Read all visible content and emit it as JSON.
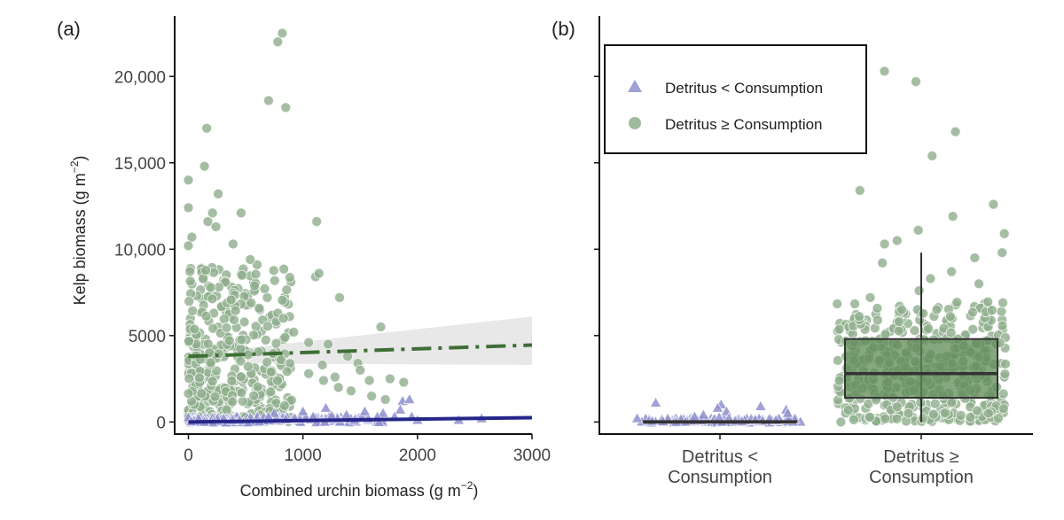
{
  "colors": {
    "green": "#8fae8c",
    "green_line": "#3e6e35",
    "blue": "#8e8fcc",
    "blue_line": "#25268a",
    "box_fill": "#5f8a57",
    "ci_band": "#e6e6e6"
  },
  "chart_data": [
    {
      "type": "scatter",
      "panel_label": "(a)",
      "xlabel": "Combined urchin biomass (g m",
      "xlabel_sup": "−2",
      "xlabel_close": ")",
      "ylabel": "Kelp biomass (g m",
      "ylabel_sup": "−2",
      "ylabel_close": ")",
      "xlim": [
        -120,
        3000
      ],
      "ylim": [
        -700,
        23500
      ],
      "xticks": [
        0,
        1000,
        2000,
        3000
      ],
      "xtick_labels": [
        "0",
        "1000",
        "2000",
        "3000"
      ],
      "yticks": [
        0,
        5000,
        10000,
        15000,
        20000
      ],
      "ytick_labels": [
        "0",
        "5000",
        "10,000",
        "15,000",
        "20,000"
      ],
      "series": [
        {
          "name": "Detritus ≥ Consumption",
          "marker": "circle",
          "highlight_points": [
            [
              820,
              22500
            ],
            [
              780,
              22000
            ],
            [
              700,
              18600
            ],
            [
              850,
              18200
            ],
            [
              160,
              17000
            ],
            [
              140,
              14800
            ],
            [
              0,
              14000
            ],
            [
              260,
              13200
            ],
            [
              0,
              12400
            ],
            [
              210,
              12100
            ],
            [
              460,
              12100
            ],
            [
              170,
              11600
            ],
            [
              1120,
              11600
            ],
            [
              240,
              11300
            ],
            [
              30,
              10700
            ],
            [
              0,
              10200
            ],
            [
              390,
              10300
            ],
            [
              1110,
              8400
            ],
            [
              1140,
              8600
            ],
            [
              600,
              9100
            ],
            [
              540,
              9400
            ],
            [
              1320,
              7200
            ],
            [
              780,
              6300
            ],
            [
              830,
              6000
            ],
            [
              1680,
              5500
            ],
            [
              920,
              5200
            ],
            [
              1050,
              4600
            ],
            [
              1220,
              4500
            ],
            [
              1390,
              3800
            ],
            [
              1480,
              3400
            ],
            [
              1500,
              3000
            ],
            [
              1170,
              3300
            ],
            [
              1050,
              2800
            ],
            [
              1760,
              2500
            ],
            [
              1880,
              2300
            ],
            [
              1310,
              2000
            ],
            [
              1420,
              1800
            ],
            [
              1580,
              2400
            ],
            [
              1180,
              2400
            ],
            [
              1280,
              2600
            ],
            [
              1600,
              1500
            ],
            [
              1720,
              1300
            ]
          ],
          "cloud": {
            "count": 420,
            "x_range": [
              0,
              900
            ],
            "y_range": [
              0,
              9000
            ],
            "seed": 11
          }
        },
        {
          "name": "Detritus < Consumption",
          "marker": "triangle",
          "highlight_points": [
            [
              1870,
              1200
            ],
            [
              1930,
              1300
            ],
            [
              1850,
              700
            ],
            [
              1540,
              600
            ],
            [
              1700,
              500
            ],
            [
              1200,
              800
            ],
            [
              1380,
              400
            ],
            [
              1000,
              600
            ],
            [
              2000,
              100
            ],
            [
              2360,
              100
            ],
            [
              2560,
              200
            ],
            [
              1650,
              300
            ],
            [
              930,
              200
            ],
            [
              750,
              500
            ],
            [
              1090,
              300
            ],
            [
              1300,
              200
            ],
            [
              1450,
              100
            ],
            [
              1800,
              300
            ],
            [
              700,
              300
            ],
            [
              1950,
              300
            ],
            [
              1250,
              350
            ],
            [
              850,
              150
            ]
          ],
          "cloud": {
            "count": 140,
            "x_range": [
              0,
              1700
            ],
            "y_range": [
              -50,
              300
            ],
            "seed": 23
          }
        }
      ],
      "fits": [
        {
          "name": "Detritus ≥ Consumption fit",
          "x": [
            0,
            3000
          ],
          "y": [
            3800,
            4450
          ],
          "style": "dash-dot",
          "ci_lower": [
            3400,
            3300
          ],
          "ci_upper": [
            4200,
            6100
          ],
          "ci_start_x": 400
        },
        {
          "name": "Detritus < Consumption fit",
          "x": [
            0,
            3000
          ],
          "y": [
            0,
            250
          ],
          "style": "solid"
        }
      ]
    },
    {
      "type": "box",
      "panel_label": "(b)",
      "categories": [
        "Detritus < Consumption",
        "Detritus ≥ Consumption"
      ],
      "category_lines": [
        [
          "Detritus <",
          "Consumption"
        ],
        [
          "Detritus ≥",
          "Consumption"
        ]
      ],
      "ylim": [
        -700,
        23500
      ],
      "yticks": [
        0,
        5000,
        10000,
        15000,
        20000
      ],
      "ytick_labels": [
        "",
        "",
        "",
        "",
        ""
      ],
      "boxes": [
        {
          "category": "Detritus < Consumption",
          "min": 0,
          "q1": 0,
          "median": 0,
          "q3": 50,
          "max": 100
        },
        {
          "category": "Detritus ≥ Consumption",
          "min": 0,
          "q1": 1400,
          "median": 2800,
          "q3": 4800,
          "max": 9800
        }
      ],
      "jitter_points": [
        {
          "category": "Detritus < Consumption",
          "marker": "triangle",
          "values": [
            1100,
            900,
            1000,
            800,
            700,
            600,
            500,
            400,
            300,
            250,
            200,
            100
          ],
          "cloud": {
            "count": 110,
            "y_range": [
              -50,
              200
            ],
            "seed": 5
          }
        },
        {
          "category": "Detritus ≥ Consumption",
          "marker": "circle",
          "values": [
            20300,
            19700,
            16800,
            16400,
            15400,
            13400,
            12600,
            11900,
            11100,
            10500,
            10900,
            10300,
            9800,
            9500,
            9200,
            8700,
            8300,
            8000,
            7600,
            7200,
            6900,
            6500,
            6100,
            5800
          ],
          "cloud": {
            "count": 430,
            "y_range": [
              0,
              7000
            ],
            "seed": 9
          }
        }
      ],
      "legend": {
        "position": "top-left",
        "entries": [
          {
            "marker": "triangle",
            "label": "Detritus < Consumption"
          },
          {
            "marker": "circle",
            "label": "Detritus ≥ Consumption"
          }
        ]
      }
    }
  ]
}
